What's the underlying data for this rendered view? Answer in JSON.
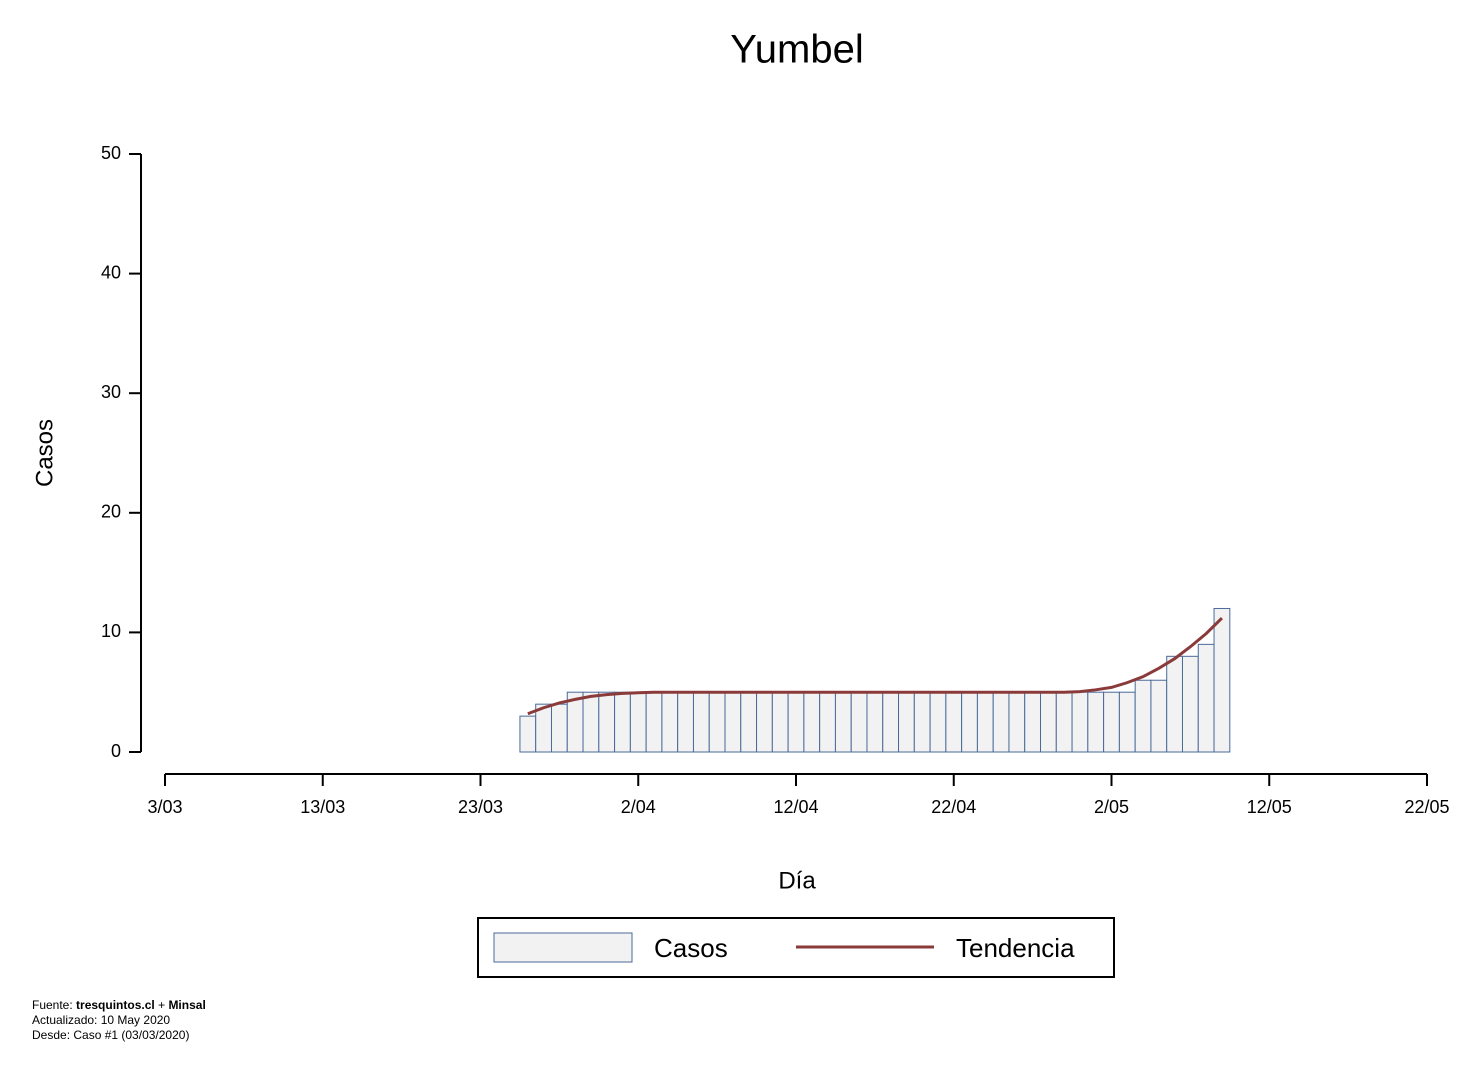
{
  "chart_data": {
    "type": "bar",
    "title": "Yumbel",
    "xlabel": "Día",
    "ylabel": "Casos",
    "x": [
      23,
      24,
      25,
      26,
      27,
      28,
      29,
      30,
      31,
      32,
      33,
      34,
      35,
      36,
      37,
      38,
      39,
      40,
      41,
      42,
      43,
      44,
      45,
      46,
      47,
      48,
      49,
      50,
      51,
      52,
      53,
      54,
      55,
      56,
      57,
      58,
      59,
      60,
      61,
      62,
      63,
      64,
      65,
      66,
      67
    ],
    "series": [
      {
        "name": "Casos",
        "type": "bar",
        "color": "#f2f2f2",
        "edgecolor": "#4a6a9a",
        "values": [
          3,
          4,
          4,
          5,
          5,
          5,
          5,
          5,
          5,
          5,
          5,
          5,
          5,
          5,
          5,
          5,
          5,
          5,
          5,
          5,
          5,
          5,
          5,
          5,
          5,
          5,
          5,
          5,
          5,
          5,
          5,
          5,
          5,
          5,
          5,
          5,
          5,
          5,
          5,
          6,
          6,
          8,
          8,
          9,
          12
        ]
      },
      {
        "name": "Tendencia",
        "type": "line",
        "color": "#8b3a3a",
        "values": [
          3.2,
          3.7,
          4.1,
          4.4,
          4.65,
          4.8,
          4.9,
          4.95,
          5,
          5,
          5,
          5,
          5,
          5,
          5,
          5,
          5,
          5,
          5,
          5,
          5,
          5,
          5,
          5,
          5,
          5,
          5,
          5,
          5,
          5,
          5,
          5,
          5,
          5,
          5,
          5.05,
          5.2,
          5.4,
          5.8,
          6.3,
          7,
          7.8,
          8.8,
          9.9,
          11.2
        ]
      }
    ],
    "xlim": [
      0,
      80
    ],
    "xticks": [
      {
        "value": 0,
        "label": "3/03"
      },
      {
        "value": 10,
        "label": "13/03"
      },
      {
        "value": 20,
        "label": "23/03"
      },
      {
        "value": 30,
        "label": "2/04"
      },
      {
        "value": 40,
        "label": "12/04"
      },
      {
        "value": 50,
        "label": "22/04"
      },
      {
        "value": 60,
        "label": "2/05"
      },
      {
        "value": 70,
        "label": "12/05"
      },
      {
        "value": 80,
        "label": "22/05"
      }
    ],
    "ylim": [
      0,
      50
    ],
    "yticks": [
      0,
      10,
      20,
      30,
      40,
      50
    ],
    "grid": false,
    "legend": "bottom"
  },
  "footer": {
    "source_label": "Fuente:",
    "source_1": "tresquintos.cl",
    "joiner": "+",
    "source_2": "Minsal",
    "updated": "Actualizado: 10 May 2020",
    "since": "Desde: Caso #1  (03/03/2020)"
  }
}
